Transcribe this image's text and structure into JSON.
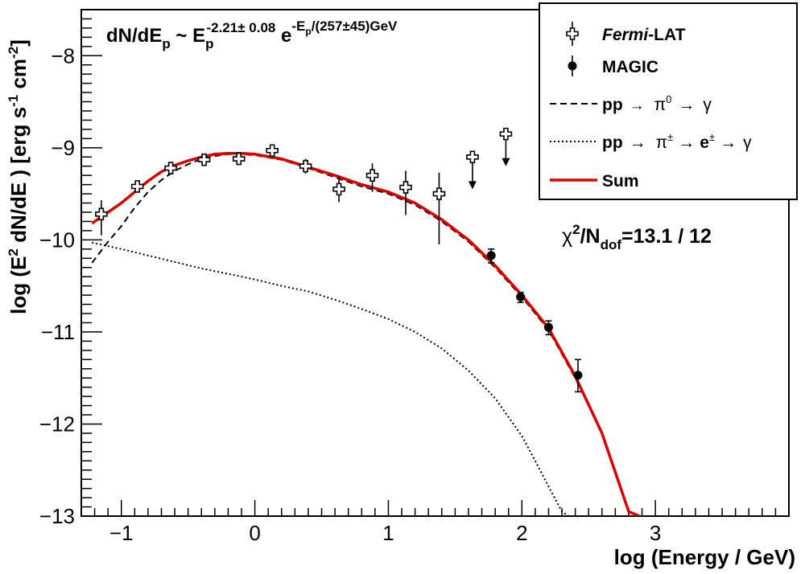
{
  "chart_data": {
    "type": "scatter",
    "xlabel": "log (Energy / GeV)",
    "ylabel": "log (E² dN/dE ) [erg s⁻¹ cm⁻²]",
    "xlim": [
      -1.3,
      4.0
    ],
    "ylim": [
      -13,
      -7.5
    ],
    "x_ticks": [
      -1,
      0,
      1,
      2,
      3
    ],
    "x_tick_labels": [
      "−1",
      "0",
      "1",
      "2",
      "3"
    ],
    "y_ticks": [
      -13,
      -12,
      -11,
      -10,
      -9,
      -8
    ],
    "y_tick_labels": [
      "−13",
      "−12",
      "−11",
      "−10",
      "−9",
      "−8"
    ],
    "annotation_formula": {
      "main": "dN/dE",
      "main_sub": "p",
      "sim": " ~ E",
      "e_sub": "p",
      "e_sup": "-2.21± 0.08",
      "exp": " e",
      "exp_sup_pre": "-E",
      "exp_sup_sub": "p",
      "exp_sup_post": "/(257±45)GeV"
    },
    "annotation_chi2": {
      "chi": "χ",
      "sup": "2",
      "slash": "/N",
      "sub": "dof",
      "value": "=13.1 / 12"
    },
    "legend": {
      "fermi_italic": "Fermi",
      "fermi_rest": "-LAT",
      "magic": "MAGIC",
      "pi0_pp": "pp",
      "pi0_arrow1": "→",
      "pi0_pi": "π",
      "pi0_sup": "0",
      "pi0_arrow2": "→",
      "pi0_gamma": "γ",
      "pipm_pp": "pp",
      "pipm_arrow1": "→",
      "pipm_pi": "π",
      "pipm_sup": "±",
      "pipm_arrow2": "→",
      "pipm_e": "e",
      "pipm_e_sup": "±",
      "pipm_arrow3": "→",
      "pipm_gamma": "γ",
      "sum": "Sum"
    },
    "colors": {
      "sum": "#dd0000",
      "axis": "#000000",
      "background": "#ffffff"
    },
    "series": [
      {
        "name": "Fermi-LAT",
        "marker": "open-cross",
        "points": [
          {
            "x": -1.15,
            "y": -9.72,
            "ylo": -9.95,
            "yhi": -9.57
          },
          {
            "x": -0.88,
            "y": -9.42,
            "ylo": -9.48,
            "yhi": -9.37
          },
          {
            "x": -0.63,
            "y": -9.22,
            "ylo": -9.27,
            "yhi": -9.17
          },
          {
            "x": -0.38,
            "y": -9.13,
            "ylo": -9.18,
            "yhi": -9.08
          },
          {
            "x": -0.12,
            "y": -9.12,
            "ylo": -9.17,
            "yhi": -9.07
          },
          {
            "x": 0.13,
            "y": -9.03,
            "ylo": -9.08,
            "yhi": -8.98
          },
          {
            "x": 0.38,
            "y": -9.2,
            "ylo": -9.28,
            "yhi": -9.12
          },
          {
            "x": 0.63,
            "y": -9.45,
            "ylo": -9.59,
            "yhi": -9.3
          },
          {
            "x": 0.88,
            "y": -9.3,
            "ylo": -9.48,
            "yhi": -9.17
          },
          {
            "x": 1.13,
            "y": -9.43,
            "ylo": -9.73,
            "yhi": -9.25
          },
          {
            "x": 1.38,
            "y": -9.5,
            "ylo": -10.05,
            "yhi": -9.27
          }
        ]
      },
      {
        "name": "Fermi-LAT upper limits",
        "marker": "open-cross-arrow",
        "points": [
          {
            "x": 1.63,
            "y": -9.1,
            "arrow_to": -9.45
          },
          {
            "x": 1.88,
            "y": -8.85,
            "arrow_to": -9.2
          }
        ]
      },
      {
        "name": "MAGIC",
        "marker": "filled-circle",
        "points": [
          {
            "x": 1.77,
            "y": -10.17,
            "ylo": -10.25,
            "yhi": -10.1
          },
          {
            "x": 1.99,
            "y": -10.62,
            "ylo": -10.68,
            "yhi": -10.57
          },
          {
            "x": 2.2,
            "y": -10.95,
            "ylo": -11.03,
            "yhi": -10.88
          },
          {
            "x": 2.42,
            "y": -11.47,
            "ylo": -11.65,
            "yhi": -11.3
          }
        ]
      },
      {
        "name": "pp → π0 → γ",
        "style": "dashed",
        "x": [
          -1.22,
          -1.1,
          -1.0,
          -0.9,
          -0.8,
          -0.7,
          -0.6,
          -0.5,
          -0.4,
          -0.3,
          -0.2,
          -0.1,
          0.0,
          0.2,
          0.4,
          0.6,
          0.8,
          1.0,
          1.2,
          1.4,
          1.6,
          1.8,
          2.0,
          2.2,
          2.4,
          2.6,
          2.8,
          2.88
        ],
        "y": [
          -10.25,
          -10.02,
          -9.85,
          -9.65,
          -9.48,
          -9.35,
          -9.25,
          -9.18,
          -9.12,
          -9.09,
          -9.07,
          -9.07,
          -9.08,
          -9.13,
          -9.22,
          -9.32,
          -9.42,
          -9.5,
          -9.62,
          -9.8,
          -10.02,
          -10.3,
          -10.62,
          -10.98,
          -11.5,
          -12.1,
          -12.95,
          -13.0
        ]
      },
      {
        "name": "pp → π± → e± → γ",
        "style": "dotted",
        "x": [
          -1.22,
          -1.0,
          -0.8,
          -0.6,
          -0.4,
          -0.2,
          0.0,
          0.2,
          0.4,
          0.6,
          0.8,
          1.0,
          1.2,
          1.4,
          1.6,
          1.8,
          2.0,
          2.1,
          2.2,
          2.3,
          2.35
        ],
        "y": [
          -10.03,
          -10.1,
          -10.17,
          -10.24,
          -10.31,
          -10.37,
          -10.43,
          -10.5,
          -10.56,
          -10.65,
          -10.75,
          -10.86,
          -11.0,
          -11.18,
          -11.42,
          -11.72,
          -12.13,
          -12.4,
          -12.68,
          -12.95,
          -13.0
        ]
      },
      {
        "name": "Sum",
        "style": "solid-red",
        "x": [
          -1.22,
          -1.1,
          -1.0,
          -0.9,
          -0.8,
          -0.7,
          -0.6,
          -0.5,
          -0.4,
          -0.3,
          -0.2,
          -0.1,
          0.0,
          0.2,
          0.4,
          0.6,
          0.8,
          1.0,
          1.2,
          1.4,
          1.6,
          1.8,
          2.0,
          2.2,
          2.4,
          2.6,
          2.8,
          2.88
        ],
        "y": [
          -9.82,
          -9.7,
          -9.6,
          -9.48,
          -9.36,
          -9.26,
          -9.19,
          -9.14,
          -9.1,
          -9.07,
          -9.06,
          -9.06,
          -9.07,
          -9.12,
          -9.21,
          -9.3,
          -9.4,
          -9.48,
          -9.6,
          -9.78,
          -10.0,
          -10.28,
          -10.6,
          -10.96,
          -11.48,
          -12.1,
          -12.95,
          -13.0
        ]
      }
    ]
  }
}
